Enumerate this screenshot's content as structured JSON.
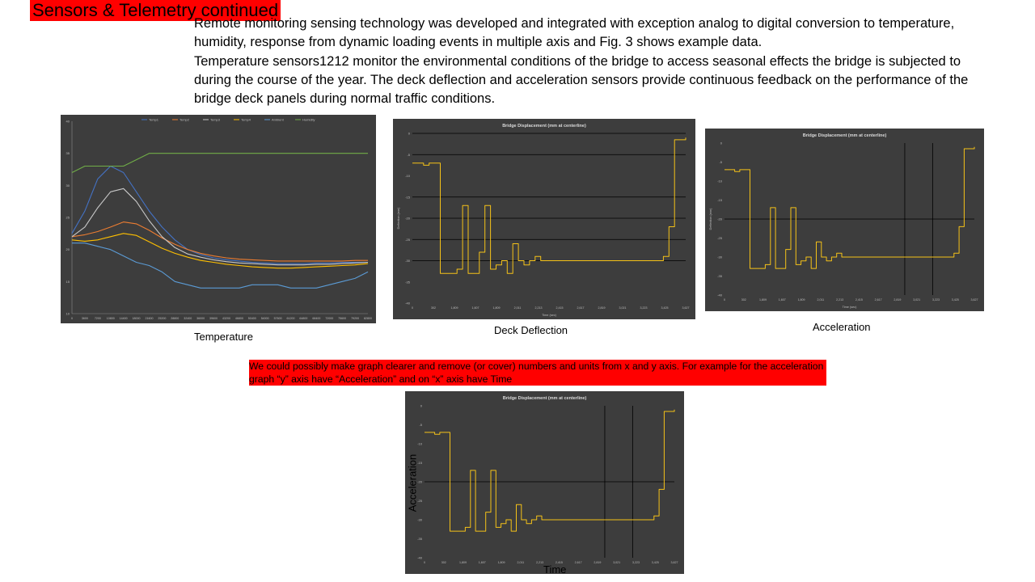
{
  "slide": {
    "title": "Sensors & Telemetry continued",
    "paragraphs": [
      " Remote monitoring sensing technology was developed and integrated with exception analog to digital conversion to temperature, humidity,  response from dynamic loading events in multiple  axis and Fig. 3 shows example data.",
      "Temperature sensors1212 monitor the environmental conditions of the bridge to access seasonal effects the bridge is subjected to during the course of the year. The deck deflection and  acceleration sensors provide continuous feedback on the performance of the bridge deck panels  during normal traffic conditions."
    ],
    "captions": {
      "temperature": "Temperature",
      "deflection": "Deck Deflection",
      "acceleration": "Acceleration"
    },
    "note": "We could possibly make graph clearer and remove (or cover) numbers and units  from x and  y axis.  For example for the acceleration graph “y” axis have “Acceleration” and on “x” axis have Time",
    "annotated_axes": {
      "y": "Acceleration",
      "x": "Time"
    },
    "colors": {
      "accent": "#ff0000",
      "chart_bg": "#3d3d3d",
      "series_yellow": "#f5c218"
    }
  },
  "chart_data": [
    {
      "id": "temperature",
      "type": "line",
      "title": "",
      "legend": [
        "Temp1",
        "Temp2",
        "Temp3",
        "Temp4",
        "Ambient",
        "Humidity"
      ],
      "legend_position": "top",
      "ylim": [
        10,
        40
      ],
      "yticks": [
        "10",
        "15",
        "20",
        "25",
        "30",
        "35",
        "40"
      ],
      "xticks": [
        "0",
        "3600",
        "7200",
        "10800",
        "14400",
        "18000",
        "21600",
        "25200",
        "28800",
        "32400",
        "36000",
        "39600",
        "43200",
        "46800",
        "50400",
        "54000",
        "57600",
        "61200",
        "64800",
        "68400",
        "72000",
        "75600",
        "79200",
        "82800"
      ],
      "x": [
        0,
        3600,
        7200,
        10800,
        14400,
        18000,
        21600,
        25200,
        28800,
        32400,
        36000,
        39600,
        43200,
        46800,
        50400,
        54000,
        57600,
        61200,
        64800,
        68400,
        72000,
        75600,
        79200,
        82800
      ],
      "series": [
        {
          "name": "Temp1",
          "color": "#4472c4",
          "values": [
            22.5,
            26,
            31,
            33,
            32,
            29,
            26,
            23.5,
            21.5,
            20,
            19.2,
            18.7,
            18.4,
            18.2,
            18,
            17.9,
            17.8,
            17.8,
            17.8,
            17.9,
            17.9,
            18,
            18,
            18
          ]
        },
        {
          "name": "Temp2",
          "color": "#ed7d31",
          "values": [
            22,
            22.3,
            22.8,
            23.5,
            24.3,
            24,
            23,
            21.8,
            20.8,
            20,
            19.4,
            19,
            18.7,
            18.5,
            18.4,
            18.3,
            18.2,
            18.2,
            18.2,
            18.2,
            18.2,
            18.2,
            18.3,
            18.3
          ]
        },
        {
          "name": "Temp3",
          "color": "#c8c8c8",
          "values": [
            22,
            23.5,
            26.5,
            29,
            29.5,
            27.5,
            24.5,
            22,
            20.3,
            19.3,
            18.8,
            18.4,
            18.1,
            17.9,
            17.8,
            17.7,
            17.6,
            17.6,
            17.6,
            17.7,
            17.7,
            17.8,
            17.9,
            18
          ]
        },
        {
          "name": "Temp4",
          "color": "#ffc000",
          "values": [
            21.5,
            21.3,
            21.5,
            22,
            22.5,
            22.2,
            21.2,
            20.2,
            19.4,
            18.8,
            18.3,
            18,
            17.7,
            17.5,
            17.3,
            17.2,
            17.1,
            17.1,
            17.2,
            17.3,
            17.4,
            17.5,
            17.6,
            17.8
          ]
        },
        {
          "name": "Ambient",
          "color": "#5b9bd5",
          "values": [
            21,
            21,
            20.5,
            20,
            19,
            18,
            17.5,
            16.5,
            15,
            14.5,
            14,
            14,
            14,
            14,
            14.5,
            14.5,
            14.5,
            14,
            14,
            14,
            14.5,
            15,
            15.5,
            16.5
          ]
        },
        {
          "name": "Humidity",
          "color": "#70ad47",
          "values": [
            32,
            33,
            33,
            33,
            33,
            34,
            35,
            35,
            35,
            35,
            35,
            35,
            35,
            35,
            35,
            35,
            35,
            35,
            35,
            35,
            35,
            35,
            35,
            35
          ]
        }
      ]
    },
    {
      "id": "deflection",
      "type": "line",
      "title": "Bridge Displacement (mm at centerline)",
      "xlabel": "Time (sec)",
      "ylabel": "Deflection (mm)",
      "ylim": [
        -40,
        0
      ],
      "yticks": [
        "0",
        "-5",
        "-10",
        "-15",
        "-20",
        "-25",
        "-30",
        "-35",
        "-40"
      ],
      "xticks": [
        "0",
        "302",
        "1,809",
        "1,607",
        "1,809",
        "2,011",
        "2,213",
        "2,415",
        "2,617",
        "2,819",
        "3,021",
        "3,223",
        "3,425",
        "3,627"
      ],
      "gridlines_y": [
        0,
        -5,
        -15,
        -20,
        -25,
        -30
      ],
      "series": [
        {
          "name": "",
          "color": "#f5c218",
          "values": [
            -7,
            -7,
            -7.5,
            -7,
            -7,
            -33,
            -33,
            -33,
            -32,
            -17,
            -33,
            -33,
            -28,
            -17,
            -32,
            -31,
            -30,
            -33,
            -26,
            -30,
            -31,
            -30,
            -29,
            -30,
            -30,
            -30,
            -30,
            -30,
            -30,
            -30,
            -30,
            -30,
            -30,
            -30,
            -30,
            -30,
            -30,
            -30,
            -30,
            -30,
            -30,
            -30,
            -30,
            -30,
            -30,
            -29,
            -22,
            -1.5,
            -1.5,
            -1
          ]
        }
      ]
    },
    {
      "id": "acceleration",
      "type": "line",
      "title": "Bridge Displacement (mm at centerline)",
      "xlabel": "Time (sec)",
      "ylabel": "Deflection (mm)",
      "ylim": [
        -40,
        0
      ],
      "yticks": [
        "0",
        "-5",
        "-10",
        "-15",
        "-20",
        "-25",
        "-30",
        "-35",
        "-40"
      ],
      "xticks": [
        "0",
        "302",
        "1,809",
        "1,607",
        "1,809",
        "2,011",
        "2,213",
        "2,415",
        "2,617",
        "2,819",
        "3,021",
        "3,223",
        "3,425",
        "3,627"
      ],
      "gridlines_y": [
        -20
      ],
      "gridlines_x": [
        2617,
        3021
      ],
      "series": [
        {
          "name": "",
          "color": "#f5c218",
          "values": [
            -7,
            -7,
            -7.5,
            -7,
            -7,
            -33,
            -33,
            -33,
            -32,
            -17,
            -33,
            -33,
            -28,
            -17,
            -32,
            -31,
            -30,
            -33,
            -26,
            -30,
            -31,
            -30,
            -29,
            -30,
            -30,
            -30,
            -30,
            -30,
            -30,
            -30,
            -30,
            -30,
            -30,
            -30,
            -30,
            -30,
            -30,
            -30,
            -30,
            -30,
            -30,
            -30,
            -30,
            -30,
            -30,
            -29,
            -22,
            -1.5,
            -1.5,
            -1
          ]
        }
      ]
    },
    {
      "id": "acceleration_edit",
      "type": "line",
      "title": "Bridge Displacement (mm at centerline)",
      "ylim": [
        -40,
        0
      ],
      "yticks": [
        "0",
        "-5",
        "-10",
        "-15",
        "-20",
        "-25",
        "-30",
        "-35",
        "-40"
      ],
      "xticks": [
        "0",
        "302",
        "1,809",
        "1,607",
        "1,809",
        "2,011",
        "2,213",
        "2,415",
        "2,617",
        "2,819",
        "3,021",
        "3,223",
        "3,425",
        "3,627"
      ],
      "gridlines_y": [
        -20
      ],
      "gridlines_x": [
        2617,
        3021
      ],
      "series": [
        {
          "name": "",
          "color": "#f5c218",
          "values": [
            -7,
            -7,
            -7.5,
            -7,
            -7,
            -33,
            -33,
            -33,
            -32,
            -17,
            -33,
            -33,
            -28,
            -17,
            -32,
            -31,
            -30,
            -33,
            -26,
            -30,
            -31,
            -30,
            -29,
            -30,
            -30,
            -30,
            -30,
            -30,
            -30,
            -30,
            -30,
            -30,
            -30,
            -30,
            -30,
            -30,
            -30,
            -30,
            -30,
            -30,
            -30,
            -30,
            -30,
            -30,
            -30,
            -29,
            -22,
            -1.5,
            -1.5,
            -1
          ]
        }
      ]
    }
  ]
}
